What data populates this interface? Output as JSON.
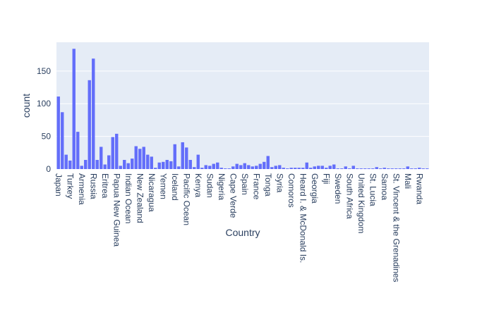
{
  "chart_data": {
    "type": "bar",
    "x_label": "Country",
    "y_label": "count",
    "categories": [
      "Japan",
      null,
      null,
      "Turkey",
      null,
      null,
      "Armenia",
      null,
      null,
      "Russia",
      null,
      null,
      "Eritrea",
      null,
      null,
      "Papua New Guinea",
      null,
      null,
      "Indian Ocean",
      null,
      null,
      "New Zealand",
      null,
      null,
      "Nicaragua",
      null,
      null,
      "Yemen",
      null,
      null,
      "Iceland",
      null,
      null,
      "Pacific Ocean",
      null,
      null,
      "Kenya",
      null,
      null,
      "Sudan",
      null,
      null,
      "Nigeria",
      null,
      null,
      "Cape Verde",
      null,
      null,
      "Spain",
      null,
      null,
      "France",
      null,
      null,
      "Tonga",
      null,
      null,
      "Syria",
      null,
      null,
      "Comoros",
      null,
      null,
      "Heard I. & McDonald Is.",
      null,
      null,
      "Georgia",
      null,
      null,
      "Fiji",
      null,
      null,
      "Sweden",
      null,
      null,
      "South Africa",
      null,
      null,
      "United Kingdom",
      null,
      null,
      "St. Lucia",
      null,
      null,
      "Samoa",
      null,
      null,
      "St. Vincent & the Grenadines",
      null,
      null,
      "Mali",
      null,
      null,
      "Rwanda",
      null,
      null
    ],
    "values": [
      111,
      87,
      22,
      13,
      184,
      57,
      5,
      14,
      136,
      169,
      14,
      34,
      7,
      21,
      49,
      54,
      5,
      14,
      9,
      16,
      35,
      31,
      34,
      22,
      19,
      2,
      10,
      11,
      14,
      12,
      38,
      4,
      41,
      33,
      14,
      3,
      22,
      2,
      6,
      5,
      8,
      10,
      2,
      1,
      1,
      4,
      8,
      6,
      9,
      6,
      4,
      5,
      8,
      11,
      20,
      3,
      5,
      6,
      2,
      1,
      2,
      2,
      2,
      2,
      10,
      2,
      4,
      5,
      5,
      2,
      5,
      7,
      1,
      1,
      4,
      1,
      5,
      1,
      1,
      1,
      1,
      1,
      3,
      1,
      2,
      1,
      1,
      1,
      1,
      1,
      4,
      1,
      1,
      2,
      1,
      1
    ],
    "color": "#636efa",
    "plot_background": "#e5ecf6",
    "grid": true,
    "ylim": [
      0,
      194
    ],
    "yticks": [
      0,
      50,
      100,
      150
    ]
  }
}
